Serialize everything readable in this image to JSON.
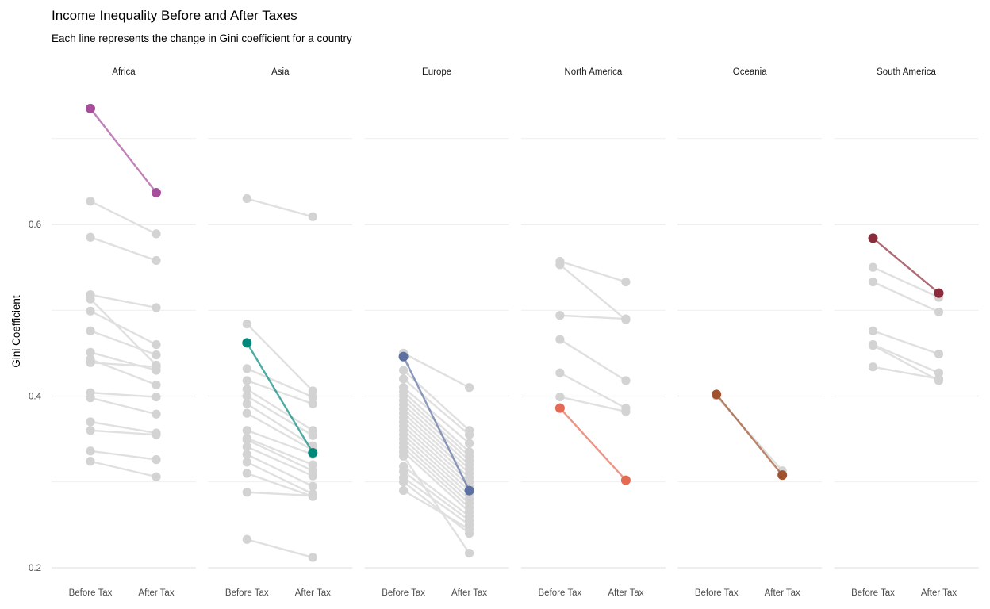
{
  "chart_data": {
    "type": "line",
    "title": "Income Inequality Before and After Taxes",
    "subtitle": "Each line represents the change in Gini coefficient for a country",
    "ylabel": "Gini Coefficient",
    "xlabel": "",
    "x_categories": [
      "Before Tax",
      "After Tax"
    ],
    "y_ticks": [
      "0.2",
      "0.4",
      "0.6"
    ],
    "y_tick_values": [
      0.2,
      0.4,
      0.6
    ],
    "ylim": [
      0.2,
      0.735
    ],
    "grid": true,
    "background_color": "#d3d3d3",
    "facets": [
      {
        "name": "Africa",
        "highlight_color": "#a64d9c",
        "highlight": [
          0.735,
          0.637
        ],
        "pairs": [
          [
            0.627,
            0.589
          ],
          [
            0.585,
            0.558
          ],
          [
            0.518,
            0.503
          ],
          [
            0.513,
            0.436
          ],
          [
            0.499,
            0.46
          ],
          [
            0.476,
            0.448
          ],
          [
            0.451,
            0.43
          ],
          [
            0.443,
            0.413
          ],
          [
            0.439,
            0.434
          ],
          [
            0.404,
            0.399
          ],
          [
            0.398,
            0.379
          ],
          [
            0.37,
            0.357
          ],
          [
            0.36,
            0.355
          ],
          [
            0.336,
            0.326
          ],
          [
            0.324,
            0.306
          ]
        ]
      },
      {
        "name": "Asia",
        "highlight_color": "#00897b",
        "highlight": [
          0.462,
          0.334
        ],
        "pairs": [
          [
            0.63,
            0.609
          ],
          [
            0.484,
            0.406
          ],
          [
            0.432,
            0.399
          ],
          [
            0.418,
            0.391
          ],
          [
            0.408,
            0.36
          ],
          [
            0.4,
            0.354
          ],
          [
            0.391,
            0.342
          ],
          [
            0.38,
            0.337
          ],
          [
            0.36,
            0.332
          ],
          [
            0.351,
            0.32
          ],
          [
            0.349,
            0.313
          ],
          [
            0.341,
            0.307
          ],
          [
            0.332,
            0.295
          ],
          [
            0.323,
            0.286
          ],
          [
            0.31,
            0.283
          ],
          [
            0.288,
            0.284
          ],
          [
            0.233,
            0.212
          ]
        ]
      },
      {
        "name": "Europe",
        "highlight_color": "#5b6fa0",
        "highlight": [
          0.446,
          0.29
        ],
        "pairs": [
          [
            0.45,
            0.41
          ],
          [
            0.43,
            0.36
          ],
          [
            0.42,
            0.355
          ],
          [
            0.41,
            0.345
          ],
          [
            0.405,
            0.335
          ],
          [
            0.4,
            0.33
          ],
          [
            0.395,
            0.325
          ],
          [
            0.39,
            0.32
          ],
          [
            0.385,
            0.315
          ],
          [
            0.38,
            0.31
          ],
          [
            0.375,
            0.305
          ],
          [
            0.37,
            0.3
          ],
          [
            0.365,
            0.295
          ],
          [
            0.36,
            0.29
          ],
          [
            0.355,
            0.285
          ],
          [
            0.35,
            0.28
          ],
          [
            0.345,
            0.275
          ],
          [
            0.34,
            0.27
          ],
          [
            0.335,
            0.265
          ],
          [
            0.318,
            0.26
          ],
          [
            0.312,
            0.255
          ],
          [
            0.305,
            0.25
          ],
          [
            0.29,
            0.245
          ],
          [
            0.3,
            0.24
          ],
          [
            0.33,
            0.217
          ]
        ]
      },
      {
        "name": "North America",
        "highlight_color": "#e56a54",
        "highlight": [
          0.386,
          0.302
        ],
        "pairs": [
          [
            0.557,
            0.533
          ],
          [
            0.553,
            0.489
          ],
          [
            0.494,
            0.49
          ],
          [
            0.466,
            0.418
          ],
          [
            0.427,
            0.386
          ],
          [
            0.399,
            0.382
          ]
        ]
      },
      {
        "name": "Oceania",
        "highlight_color": "#a0522d",
        "highlight": [
          0.402,
          0.308
        ],
        "pairs": [
          [
            0.4,
            0.313
          ]
        ]
      },
      {
        "name": "South America",
        "highlight_color": "#8b2c3c",
        "highlight": [
          0.584,
          0.52
        ],
        "pairs": [
          [
            0.55,
            0.515
          ],
          [
            0.533,
            0.498
          ],
          [
            0.476,
            0.449
          ],
          [
            0.46,
            0.427
          ],
          [
            0.459,
            0.418
          ],
          [
            0.434,
            0.42
          ]
        ]
      }
    ]
  }
}
